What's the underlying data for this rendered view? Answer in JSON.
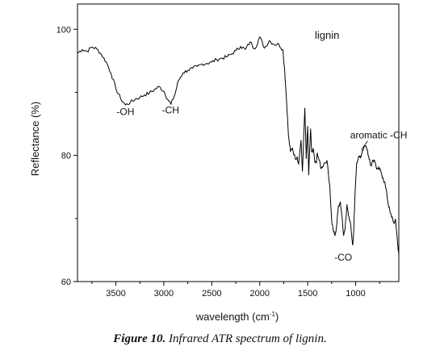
{
  "caption": {
    "label": "Figure 10.",
    "text": "Infrared ATR spectrum of lignin."
  },
  "chart_data": {
    "type": "line",
    "title": "",
    "xlabel": "wavelength (cm",
    "xlabel_sup": "-1",
    "xlabel_close": ")",
    "ylabel": "Reflectance (%)",
    "xlim": [
      3900,
      550
    ],
    "x_reversed": true,
    "ylim": [
      60,
      104
    ],
    "xticks": [
      3500,
      3000,
      2500,
      2000,
      1500,
      1000
    ],
    "yticks": [
      60,
      80,
      100
    ],
    "grid": false,
    "legend": {
      "placement": "top-right",
      "entries": [
        "lignin"
      ]
    },
    "series": [
      {
        "name": "lignin",
        "color": "#000000",
        "x": [
          3900,
          3850,
          3800,
          3750,
          3700,
          3650,
          3600,
          3550,
          3500,
          3450,
          3400,
          3350,
          3300,
          3250,
          3200,
          3150,
          3100,
          3050,
          3000,
          2960,
          2925,
          2880,
          2850,
          2800,
          2750,
          2700,
          2650,
          2600,
          2550,
          2500,
          2450,
          2400,
          2350,
          2300,
          2250,
          2200,
          2150,
          2100,
          2050,
          2000,
          1950,
          1900,
          1850,
          1800,
          1760,
          1740,
          1720,
          1700,
          1680,
          1660,
          1630,
          1610,
          1595,
          1570,
          1555,
          1530,
          1515,
          1500,
          1490,
          1470,
          1460,
          1440,
          1425,
          1410,
          1400,
          1380,
          1360,
          1330,
          1300,
          1270,
          1250,
          1230,
          1215,
          1200,
          1180,
          1160,
          1140,
          1125,
          1110,
          1090,
          1070,
          1050,
          1035,
          1030,
          1020,
          1010,
          990,
          970,
          950,
          930,
          900,
          880,
          860,
          840,
          820,
          800,
          780,
          760,
          740,
          720,
          700,
          680,
          660,
          640,
          620,
          600,
          585,
          570,
          560,
          550
        ],
        "y": [
          96.2,
          96.8,
          96.5,
          97.2,
          96.9,
          96.0,
          94.8,
          93.0,
          90.6,
          89.0,
          88.0,
          88.4,
          88.9,
          89.2,
          89.6,
          89.9,
          90.4,
          90.9,
          90.2,
          88.9,
          88.1,
          89.9,
          91.8,
          93.1,
          93.5,
          93.8,
          94.1,
          94.5,
          94.6,
          94.8,
          95.2,
          95.4,
          95.6,
          96.0,
          96.6,
          97.3,
          96.8,
          98.0,
          96.9,
          98.8,
          97.0,
          98.2,
          97.6,
          97.6,
          96.8,
          93.5,
          88.5,
          83.0,
          80.6,
          81.2,
          79.5,
          79.8,
          78.6,
          82.4,
          77.5,
          87.5,
          79.5,
          84.6,
          76.9,
          84.2,
          80.6,
          80.9,
          78.9,
          78.8,
          80.4,
          79.2,
          77.9,
          78.7,
          79.2,
          75.2,
          69.6,
          67.9,
          67.3,
          68.6,
          72.0,
          72.6,
          70.0,
          67.3,
          68.4,
          72.2,
          70.3,
          68.8,
          66.3,
          65.8,
          68.0,
          72.6,
          78.8,
          79.8,
          79.6,
          80.8,
          81.5,
          81.0,
          79.4,
          78.3,
          79.3,
          79.0,
          77.8,
          78.2,
          77.5,
          76.4,
          75.8,
          74.6,
          72.2,
          70.9,
          70.3,
          69.2,
          69.9,
          67.4,
          65.7,
          64.3
        ]
      }
    ],
    "annotations": [
      {
        "text": "-OH",
        "x": 3400,
        "y": 86.4
      },
      {
        "text": "-CH",
        "x": 2930,
        "y": 86.7
      },
      {
        "text": "aromatic -CH",
        "x": 760,
        "y": 82.7
      },
      {
        "text": "-CO",
        "x": 1130,
        "y": 63.3
      }
    ]
  }
}
